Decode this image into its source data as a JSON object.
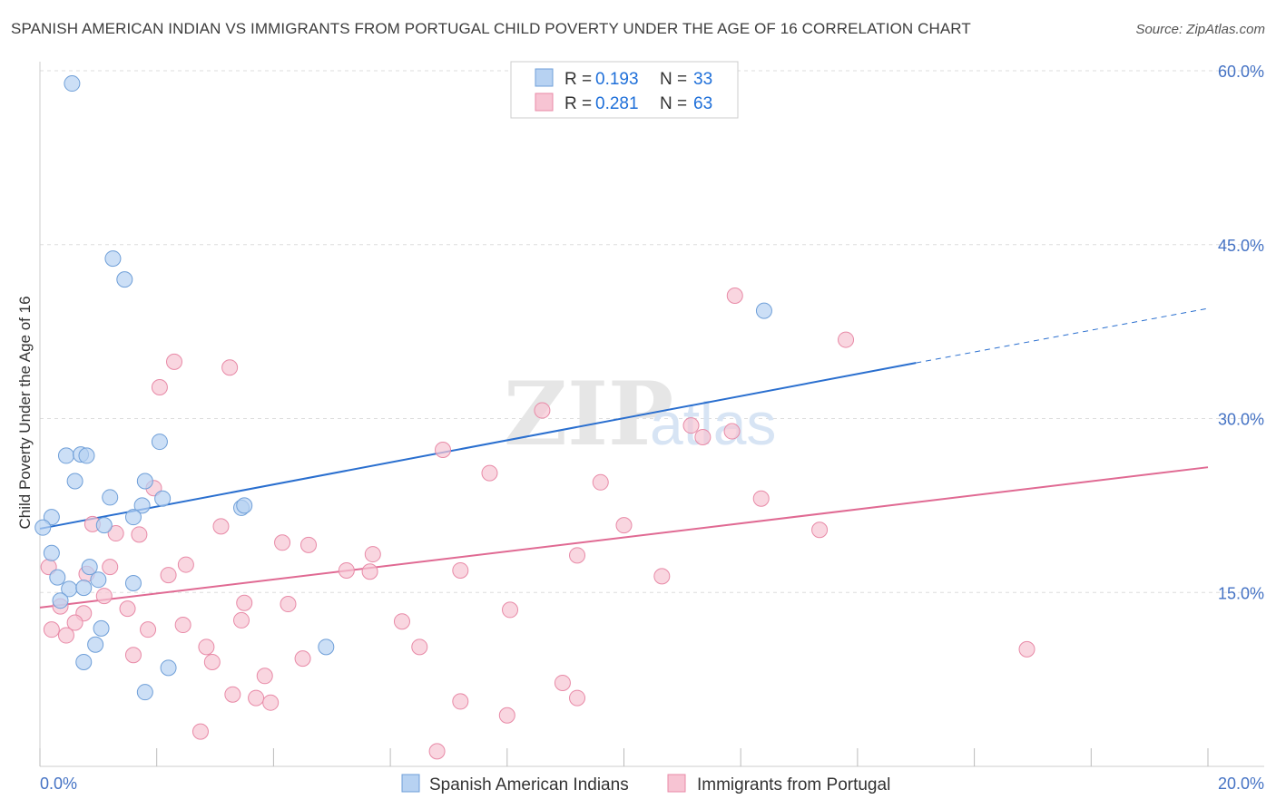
{
  "title": "SPANISH AMERICAN INDIAN VS IMMIGRANTS FROM PORTUGAL CHILD POVERTY UNDER THE AGE OF 16 CORRELATION CHART",
  "source": "Source: ZipAtlas.com",
  "watermark": {
    "zip": "ZIP",
    "atlas": "atlas"
  },
  "legend_top": [
    {
      "r_label": "R = ",
      "r_value": "0.193",
      "n_label": "N = ",
      "n_value": "33"
    },
    {
      "r_label": "R = ",
      "r_value": "0.281",
      "n_label": "N = ",
      "n_value": "63"
    }
  ],
  "legend_bottom": [
    "Spanish American Indians",
    "Immigrants from Portugal"
  ],
  "colors": {
    "blue_fill": "#b7d2f2",
    "blue_stroke": "#6f9fd8",
    "blue_line": "#2a6fcf",
    "pink_fill": "#f7c4d3",
    "pink_stroke": "#e88aa7",
    "pink_line": "#e06a93",
    "grid": "#dddddd",
    "tick_text": "#4472c4"
  },
  "chart_data": {
    "type": "scatter",
    "title": "SPANISH AMERICAN INDIAN VS IMMIGRANTS FROM PORTUGAL CHILD POVERTY UNDER THE AGE OF 16 CORRELATION CHART",
    "xlabel": "",
    "ylabel": "Child Poverty Under the Age of 16",
    "xlim": [
      0,
      20
    ],
    "ylim": [
      0,
      60
    ],
    "x_tick_labels": [
      "0.0%",
      "20.0%"
    ],
    "y_ticks": [
      15,
      30,
      45,
      60
    ],
    "y_tick_labels": [
      "15.0%",
      "30.0%",
      "45.0%",
      "60.0%"
    ],
    "grid": true,
    "legend_position": "top-center",
    "series": [
      {
        "name": "Spanish American Indians",
        "points": [
          [
            0.55,
            58.9
          ],
          [
            1.25,
            43.8
          ],
          [
            1.45,
            42.0
          ],
          [
            12.4,
            39.3
          ],
          [
            0.45,
            26.8
          ],
          [
            0.7,
            26.9
          ],
          [
            0.8,
            26.8
          ],
          [
            2.05,
            28.0
          ],
          [
            0.6,
            24.6
          ],
          [
            1.8,
            24.6
          ],
          [
            1.2,
            23.2
          ],
          [
            2.1,
            23.1
          ],
          [
            1.75,
            22.5
          ],
          [
            3.45,
            22.3
          ],
          [
            3.5,
            22.5
          ],
          [
            0.2,
            21.5
          ],
          [
            1.6,
            21.5
          ],
          [
            1.1,
            20.8
          ],
          [
            0.05,
            20.6
          ],
          [
            0.2,
            18.4
          ],
          [
            0.85,
            17.2
          ],
          [
            0.3,
            16.3
          ],
          [
            1.0,
            16.1
          ],
          [
            1.6,
            15.8
          ],
          [
            0.5,
            15.3
          ],
          [
            0.75,
            15.4
          ],
          [
            0.35,
            14.3
          ],
          [
            1.05,
            11.9
          ],
          [
            0.95,
            10.5
          ],
          [
            4.9,
            10.3
          ],
          [
            0.75,
            9.0
          ],
          [
            2.2,
            8.5
          ],
          [
            1.8,
            6.4
          ]
        ],
        "trend": {
          "from": [
            0,
            20.5
          ],
          "to": [
            15.0,
            34.8
          ],
          "dashed_to": [
            20.0,
            39.5
          ]
        }
      },
      {
        "name": "Immigrants from Portugal",
        "points": [
          [
            11.9,
            40.6
          ],
          [
            13.8,
            36.8
          ],
          [
            2.3,
            34.9
          ],
          [
            3.25,
            34.4
          ],
          [
            2.05,
            32.7
          ],
          [
            8.6,
            30.7
          ],
          [
            11.15,
            29.4
          ],
          [
            11.85,
            28.9
          ],
          [
            11.35,
            28.4
          ],
          [
            6.9,
            27.3
          ],
          [
            7.7,
            25.3
          ],
          [
            9.6,
            24.5
          ],
          [
            1.95,
            24.0
          ],
          [
            12.35,
            23.1
          ],
          [
            0.9,
            20.9
          ],
          [
            3.1,
            20.7
          ],
          [
            10.0,
            20.8
          ],
          [
            13.35,
            20.4
          ],
          [
            1.3,
            20.1
          ],
          [
            1.7,
            20.0
          ],
          [
            4.15,
            19.3
          ],
          [
            4.6,
            19.1
          ],
          [
            5.7,
            18.3
          ],
          [
            9.2,
            18.2
          ],
          [
            2.5,
            17.4
          ],
          [
            1.2,
            17.2
          ],
          [
            5.25,
            16.9
          ],
          [
            5.65,
            16.8
          ],
          [
            7.2,
            16.9
          ],
          [
            0.15,
            17.2
          ],
          [
            0.8,
            16.6
          ],
          [
            2.2,
            16.5
          ],
          [
            10.65,
            16.4
          ],
          [
            1.1,
            14.7
          ],
          [
            3.5,
            14.1
          ],
          [
            4.25,
            14.0
          ],
          [
            0.35,
            13.8
          ],
          [
            1.5,
            13.6
          ],
          [
            8.05,
            13.5
          ],
          [
            0.75,
            13.2
          ],
          [
            0.6,
            12.4
          ],
          [
            3.45,
            12.6
          ],
          [
            6.2,
            12.5
          ],
          [
            2.45,
            12.2
          ],
          [
            0.2,
            11.8
          ],
          [
            1.85,
            11.8
          ],
          [
            0.45,
            11.3
          ],
          [
            2.85,
            10.3
          ],
          [
            16.9,
            10.1
          ],
          [
            6.5,
            10.3
          ],
          [
            1.6,
            9.6
          ],
          [
            4.5,
            9.3
          ],
          [
            2.95,
            9.0
          ],
          [
            3.85,
            7.8
          ],
          [
            8.95,
            7.2
          ],
          [
            3.3,
            6.2
          ],
          [
            3.7,
            5.9
          ],
          [
            3.95,
            5.5
          ],
          [
            9.2,
            5.9
          ],
          [
            7.2,
            5.6
          ],
          [
            8.0,
            4.4
          ],
          [
            2.75,
            3.0
          ],
          [
            6.8,
            1.3
          ]
        ],
        "trend": {
          "from": [
            0,
            13.7
          ],
          "to": [
            20.0,
            25.8
          ]
        }
      }
    ]
  }
}
